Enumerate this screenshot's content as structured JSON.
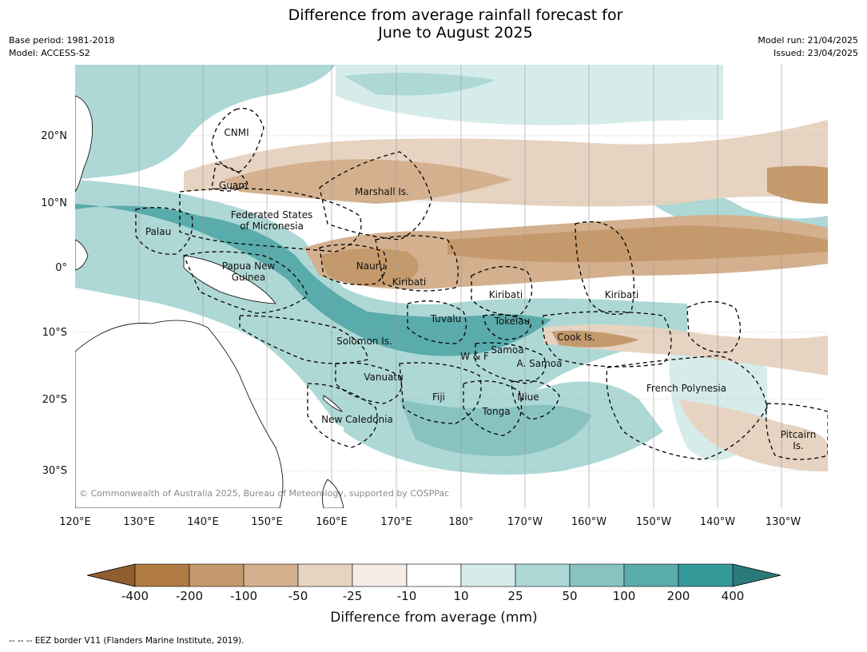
{
  "title_line1": "Difference from average rainfall forecast for",
  "title_line2": "June to August 2025",
  "meta_left": [
    "Base period: 1981-2018",
    "Model: ACCESS-S2"
  ],
  "meta_right": [
    "Model run: 21/04/2025",
    "Issued: 23/04/2025"
  ],
  "lon_ticks": [
    "120°E",
    "130°E",
    "140°E",
    "150°E",
    "160°E",
    "170°E",
    "180°",
    "170°W",
    "160°W",
    "150°W",
    "140°W",
    "130°W"
  ],
  "lat_ticks": [
    "20°N",
    "10°N",
    "0°",
    "10°S",
    "20°S",
    "30°S"
  ],
  "regions": [
    "CNMI",
    "Guam",
    "Marshall Is.",
    "Federated States",
    "of Micronesia",
    "Palau",
    "Papua New",
    "Guinea",
    "Nauru",
    "Kiribati",
    "Kiribati",
    "Kiribati",
    "Tuvalu",
    "Tokelau",
    "Cook Is.",
    "Solomon Is.",
    "Samoa",
    "W & F",
    "A. Samoa",
    "Vanuatu",
    "Fiji",
    "Niue",
    "French Polynesia",
    "Tonga",
    "New Caledonia",
    "Pitcairn",
    "Is."
  ],
  "copyright": "© Commonwealth of Australia 2025, Bureau of Meteorology, supported by COSPPac",
  "colorbar": {
    "labels": [
      "-400",
      "-200",
      "-100",
      "-50",
      "-25",
      "-10",
      "10",
      "25",
      "50",
      "100",
      "200",
      "400"
    ],
    "colors": [
      "#8f5d2e",
      "#b07b42",
      "#c49a6c",
      "#d4b08e",
      "#e6d3c1",
      "#f4ece6",
      "#ffffff",
      "#d6ecea",
      "#aed8d6",
      "#88c3c2",
      "#5aabab",
      "#36999a",
      "#2b7a7a"
    ],
    "title": "Difference from average (mm)"
  },
  "footer": "--  --  -- EEZ border V11 (Flanders Marine Institute, 2019)."
}
